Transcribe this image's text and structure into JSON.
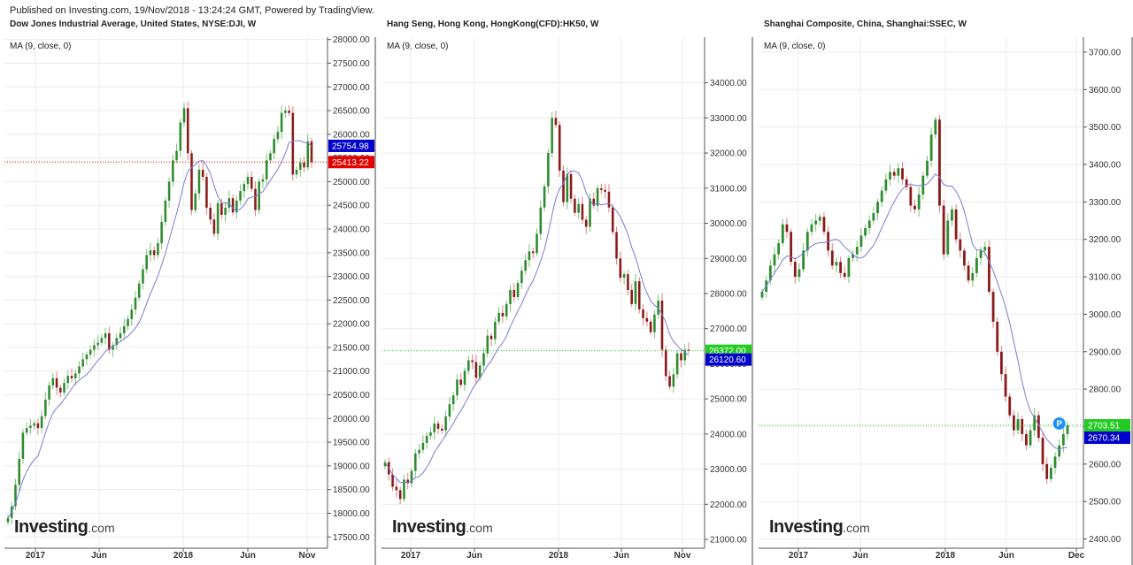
{
  "published": "Published on Investing.com, 19/Nov/2018 - 13:24:24 GMT, Powered by TradingView.",
  "logo": {
    "name": "Investing",
    "suffix": ".com"
  },
  "colors": {
    "up": "#2e8b2e",
    "down": "#8b1a1a",
    "wick_up": "#7fbf7f",
    "wick_down": "#e08080",
    "ma": "#7b7bd6",
    "blue_badge": "#0000cc",
    "red_badge": "#e00000",
    "green_badge": "#22cc22",
    "grid": "#ececec"
  },
  "chart_data": [
    {
      "type": "candlestick",
      "title": "Dow Jones Industrial Average, United States, NYSE:DJI, W",
      "indicator": "MA (9, close, 0)",
      "x_ticks": [
        "2017",
        "Jun",
        "2018",
        "Jun",
        "Nov"
      ],
      "y_ticks": [
        "28000.00",
        "27500.00",
        "27000.00",
        "26500.00",
        "26000.00",
        "25500.00",
        "25000.00",
        "24500.00",
        "24000.00",
        "23500.00",
        "23000.00",
        "22500.00",
        "22000.00",
        "21500.00",
        "21000.00",
        "20500.00",
        "20000.00",
        "19500.00",
        "19000.00",
        "18500.00",
        "18000.00",
        "17500.00"
      ],
      "ylim": [
        17300,
        28050
      ],
      "price_line": {
        "value": 25413.22,
        "label": "25413.22",
        "color": "red",
        "style": "dotted"
      },
      "ma_label": {
        "value": 25754.98,
        "label": "25754.98",
        "color": "blue"
      },
      "closes": [
        17900,
        18150,
        18600,
        19150,
        19700,
        19800,
        19850,
        19900,
        19800,
        20050,
        20400,
        20700,
        20850,
        20650,
        20550,
        20750,
        20900,
        20850,
        20950,
        21100,
        21250,
        21350,
        21450,
        21550,
        21600,
        21700,
        21800,
        21450,
        21550,
        21700,
        21800,
        21950,
        22100,
        22300,
        22550,
        22850,
        23150,
        23450,
        23550,
        23450,
        23700,
        24150,
        24600,
        25000,
        25450,
        25650,
        26250,
        26550,
        25600,
        24400,
        24750,
        25250,
        25100,
        24450,
        24200,
        23900,
        24550,
        24300,
        24450,
        24650,
        24350,
        24600,
        24800,
        24950,
        25100,
        24850,
        24400,
        25000,
        25050,
        25450,
        25600,
        25900,
        26050,
        26450,
        26500,
        26450,
        25150,
        25250,
        25400,
        25300,
        25850,
        25413.22
      ]
    },
    {
      "type": "candlestick",
      "title": "Hang Seng, Hong Kong, HongKong(CFD):HK50, W",
      "indicator": "MA (9, close, 0)",
      "x_ticks": [
        "2017",
        "Jun",
        "2018",
        "Jun",
        "Nov"
      ],
      "y_ticks": [
        "34000.00",
        "33000.00",
        "32000.00",
        "31000.00",
        "30000.00",
        "29000.00",
        "28000.00",
        "27000.00",
        "26000.00",
        "25000.00",
        "24000.00",
        "23000.00",
        "22000.00",
        "21000.00"
      ],
      "ylim": [
        20800,
        35300
      ],
      "price_line": {
        "value": 26372.0,
        "label": "26372.00",
        "color": "green",
        "style": "dotted"
      },
      "ma_label": {
        "value": 26120.6,
        "label": "26120.60",
        "color": "blue"
      },
      "closes": [
        23200,
        22850,
        22500,
        22400,
        22150,
        22700,
        22600,
        22950,
        23450,
        23550,
        23750,
        23950,
        24050,
        24300,
        24150,
        24100,
        24500,
        24850,
        25100,
        25550,
        25400,
        25800,
        26100,
        26050,
        25600,
        25950,
        26300,
        26800,
        26700,
        27200,
        27450,
        27350,
        27700,
        28100,
        27900,
        28300,
        28650,
        28950,
        29200,
        29150,
        29700,
        30450,
        31050,
        32000,
        33000,
        32800,
        31500,
        30600,
        31400,
        30700,
        30300,
        30550,
        30100,
        29900,
        30700,
        30500,
        31000,
        30950,
        30900,
        30450,
        29750,
        29000,
        28450,
        28550,
        28100,
        27700,
        28350,
        27550,
        27300,
        27200,
        26900,
        27400,
        27800,
        26400,
        25650,
        25350,
        25700,
        26300,
        26100,
        26400,
        26372
      ]
    },
    {
      "type": "candlestick",
      "title": "Shanghai Composite, China, Shanghai:SSEC, W",
      "indicator": "MA (9, close, 0)",
      "x_ticks": [
        "2017",
        "Jun",
        "2018",
        "Jun",
        "Dec"
      ],
      "y_ticks": [
        "3700.00",
        "3600.00",
        "3500.00",
        "3400.00",
        "3300.00",
        "3200.00",
        "3100.00",
        "3000.00",
        "2900.00",
        "2800.00",
        "2700.00",
        "2600.00",
        "2500.00",
        "2400.00"
      ],
      "ylim": [
        2380,
        3740
      ],
      "price_line": {
        "value": 2703.51,
        "label": "2703.51",
        "color": "green",
        "style": "dotted"
      },
      "ma_label": {
        "value": 2670.34,
        "label": "2670.34",
        "color": "blue"
      },
      "marker": {
        "label": "P"
      },
      "closes": [
        3060,
        3090,
        3130,
        3160,
        3190,
        3240,
        3220,
        3140,
        3100,
        3120,
        3170,
        3220,
        3240,
        3250,
        3260,
        3220,
        3170,
        3130,
        3140,
        3110,
        3100,
        3150,
        3160,
        3180,
        3210,
        3230,
        3250,
        3270,
        3300,
        3330,
        3360,
        3380,
        3370,
        3390,
        3360,
        3340,
        3290,
        3280,
        3320,
        3370,
        3410,
        3480,
        3520,
        3290,
        3160,
        3250,
        3280,
        3200,
        3170,
        3130,
        3090,
        3110,
        3150,
        3170,
        3180,
        3060,
        2980,
        2900,
        2840,
        2780,
        2730,
        2690,
        2720,
        2680,
        2650,
        2690,
        2730,
        2670,
        2600,
        2560,
        2590,
        2620,
        2650,
        2680,
        2703.51
      ]
    }
  ]
}
